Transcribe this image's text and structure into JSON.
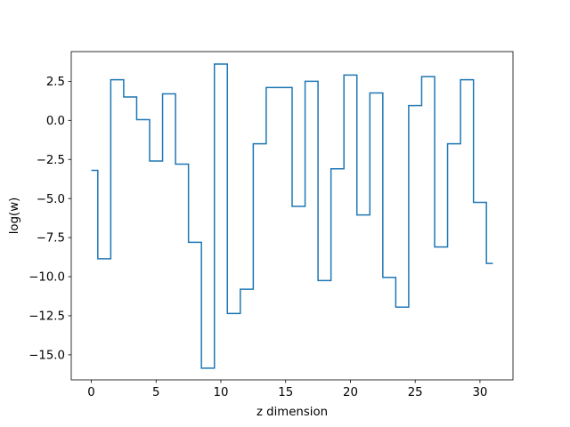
{
  "chart_data": {
    "type": "line",
    "step_style": "mid",
    "title": "",
    "xlabel": "z dimension",
    "ylabel": "log(w)",
    "xlim": [
      -1.55,
      32.55
    ],
    "ylim": [
      -16.6,
      4.4
    ],
    "xticks": [
      0,
      5,
      10,
      15,
      20,
      25,
      30
    ],
    "xtick_labels": [
      "0",
      "5",
      "10",
      "15",
      "20",
      "25",
      "30"
    ],
    "yticks": [
      2.5,
      0.0,
      -2.5,
      -5.0,
      -7.5,
      -10.0,
      -12.5,
      -15.0
    ],
    "ytick_labels": [
      "2.5",
      "0.0",
      "−2.5",
      "−5.0",
      "−7.5",
      "−10.0",
      "−12.5",
      "−15.0"
    ],
    "grid": false,
    "line_color": "#1f77b4",
    "series": [
      {
        "x": [
          0,
          1,
          2,
          3,
          4,
          5,
          6,
          7,
          8,
          9,
          10,
          11,
          12,
          13,
          14,
          15,
          16,
          17,
          18,
          19,
          20,
          21,
          22,
          23,
          24,
          25,
          26,
          27,
          28,
          29,
          30,
          31
        ],
        "values": [
          -3.2,
          -8.85,
          2.6,
          1.5,
          0.05,
          -2.6,
          1.7,
          -2.8,
          -7.8,
          -15.85,
          3.6,
          -12.35,
          -10.8,
          -1.5,
          2.1,
          2.1,
          -5.5,
          2.5,
          -10.25,
          -3.1,
          2.9,
          -6.05,
          1.75,
          -10.05,
          -11.95,
          0.95,
          2.8,
          -8.1,
          -1.5,
          2.6,
          -5.25,
          -9.15
        ]
      }
    ]
  }
}
